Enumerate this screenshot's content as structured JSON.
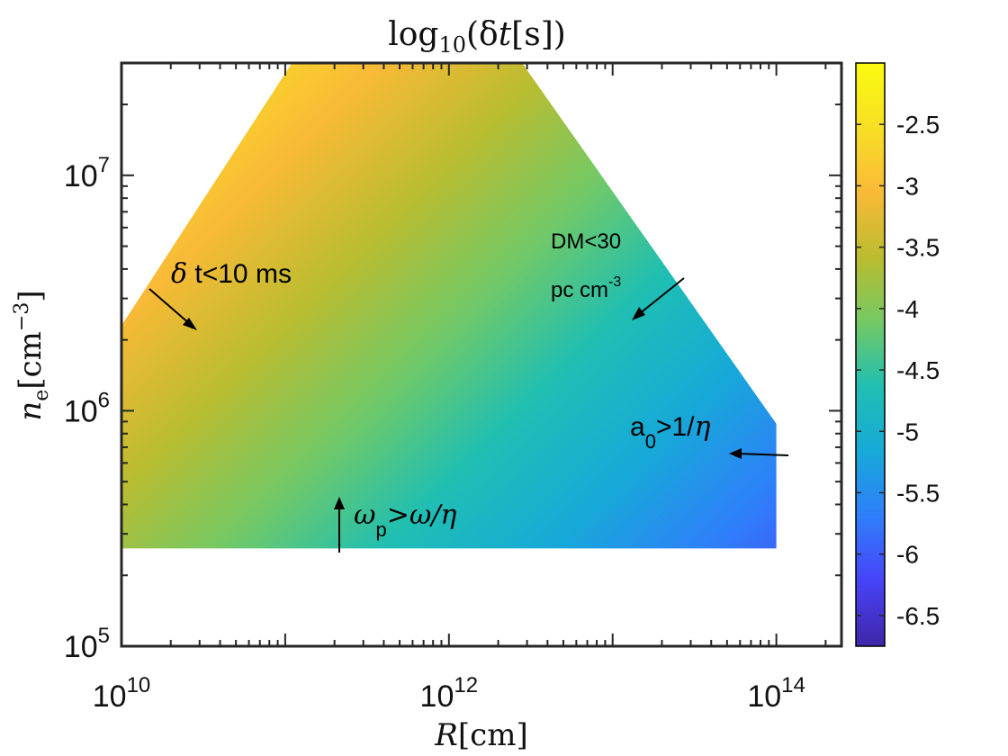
{
  "chart_data": {
    "type": "heatmap",
    "title": "log10(δt[s])",
    "xlabel": "R[cm]",
    "ylabel": "n_e[cm^-3]",
    "x_scale": "log",
    "y_scale": "log",
    "xlim": [
      10000000000.0,
      250000000000000.0
    ],
    "ylim": [
      100000.0,
      30000000.0
    ],
    "x_ticks": [
      {
        "value": 10000000000.0,
        "label": "10",
        "exp": "10"
      },
      {
        "value": 1000000000000.0,
        "label": "10",
        "exp": "12"
      },
      {
        "value": 100000000000000.0,
        "label": "10",
        "exp": "14"
      }
    ],
    "y_ticks": [
      {
        "value": 100000.0,
        "label": "10",
        "exp": "5"
      },
      {
        "value": 1000000.0,
        "label": "10",
        "exp": "6"
      },
      {
        "value": 10000000.0,
        "label": "10",
        "exp": "7"
      }
    ],
    "region_vertices": [
      {
        "R": 10000000000.0,
        "ne": 260000.0
      },
      {
        "R": 10000000000.0,
        "ne": 2300000.0
      },
      {
        "R": 110000000000.0,
        "ne": 30000000.0
      },
      {
        "R": 2800000000000.0,
        "ne": 30000000.0
      },
      {
        "R": 100000000000000.0,
        "ne": 880000.0
      },
      {
        "R": 100000000000000.0,
        "ne": 260000.0
      }
    ],
    "color_gradient": {
      "direction": "log10(δt) decreases from top-left (≈-2.2) to bottom-right (≈-6.6)",
      "samples": [
        {
          "R": 10000000000.0,
          "ne": 2300000.0,
          "value": -2.2
        },
        {
          "R": 20000000000.0,
          "ne": 1000000.0,
          "value": -2.9
        },
        {
          "R": 100000000000.0,
          "ne": 1000000.0,
          "value": -3.6
        },
        {
          "R": 1000000000000.0,
          "ne": 1000000.0,
          "value": -4.6
        },
        {
          "R": 10000000000000.0,
          "ne": 1000000.0,
          "value": -5.5
        },
        {
          "R": 90000000000000.0,
          "ne": 320000.0,
          "value": -6.6
        }
      ]
    },
    "colorbar": {
      "range": [
        -6.75,
        -2.0
      ],
      "ticks": [
        "-2.5",
        "-3",
        "-3.5",
        "-4",
        "-4.5",
        "-5",
        "-5.5",
        "-6",
        "-6.5"
      ],
      "tick_values": [
        -2.5,
        -3,
        -3.5,
        -4,
        -4.5,
        -5,
        -5.5,
        -6,
        -6.5
      ],
      "colormap": [
        "#3e26a8",
        "#4743f8",
        "#2f7efb",
        "#17a9d8",
        "#1ebfb3",
        "#74c964",
        "#bbbc2f",
        "#f9ba37",
        "#f8df25",
        "#f9fb0e"
      ]
    },
    "annotations": [
      {
        "id": "dt",
        "symbol": "δ",
        "text": " t<10 ms"
      },
      {
        "id": "dm",
        "line1": "DM<30",
        "line2": "pc cm",
        "sup": "-3"
      },
      {
        "id": "a0",
        "text": "a",
        "sub": "0",
        "text2": ">1/",
        "symbol": "η"
      },
      {
        "id": "wp",
        "symbol": "ω",
        "sub": "p",
        "text2": ">ω/η"
      }
    ],
    "grid": false,
    "legend": "none"
  }
}
